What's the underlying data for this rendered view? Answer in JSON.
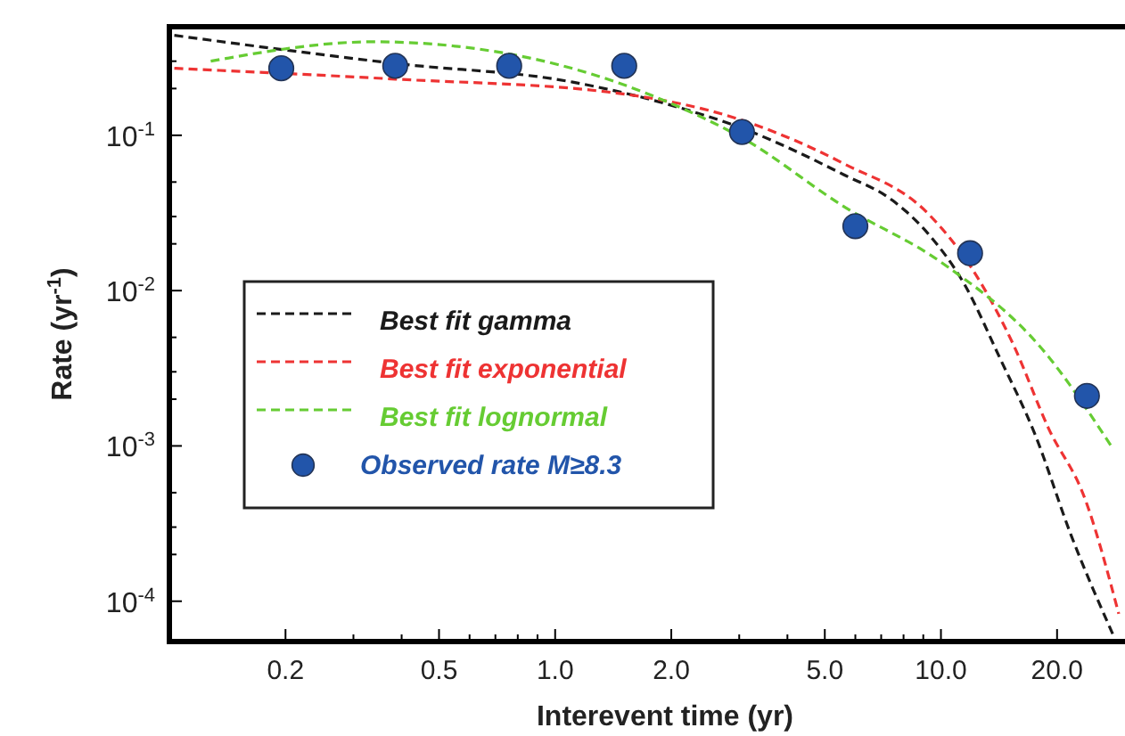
{
  "chart_data": {
    "type": "line",
    "xlabel": "Interevent time (yr)",
    "ylabel": "Rate (yr$^{-1}$)",
    "log": "xy",
    "grid": false,
    "legend": "left",
    "line_style": "dashed",
    "xlim": [
      0.1,
      30
    ],
    "ylim": [
      5.5e-05,
      0.5
    ],
    "xticks": [
      {
        "value": 0.2,
        "label": "0.2"
      },
      {
        "value": 0.3,
        "label": null
      },
      {
        "value": 0.4,
        "label": null
      },
      {
        "value": 0.5,
        "label": "0.5"
      },
      {
        "value": 0.6,
        "label": null
      },
      {
        "value": 0.7,
        "label": null
      },
      {
        "value": 0.8,
        "label": null
      },
      {
        "value": 0.9,
        "label": null
      },
      {
        "value": 1,
        "label": "1.0"
      },
      {
        "value": 2,
        "label": "2.0"
      },
      {
        "value": 3,
        "label": null
      },
      {
        "value": 4,
        "label": null
      },
      {
        "value": 5,
        "label": "5.0"
      },
      {
        "value": 6,
        "label": null
      },
      {
        "value": 7,
        "label": null
      },
      {
        "value": 8,
        "label": null
      },
      {
        "value": 9,
        "label": null
      },
      {
        "value": 10,
        "label": "10.0"
      },
      {
        "value": 20,
        "label": "20.0"
      }
    ],
    "yticks": [
      {
        "value": 0.0001,
        "label": "10$^{-4}$"
      },
      {
        "value": 0.0002,
        "label": null
      },
      {
        "value": 0.0003,
        "label": null
      },
      {
        "value": 0.0005,
        "label": null
      },
      {
        "value": 0.001,
        "label": "10$^{-3}$"
      },
      {
        "value": 0.002,
        "label": null
      },
      {
        "value": 0.003,
        "label": null
      },
      {
        "value": 0.005,
        "label": null
      },
      {
        "value": 0.01,
        "label": "10$^{-2}$"
      },
      {
        "value": 0.02,
        "label": null
      },
      {
        "value": 0.03,
        "label": null
      },
      {
        "value": 0.05,
        "label": null
      },
      {
        "value": 0.1,
        "label": "10$^{-1}$"
      },
      {
        "value": 0.2,
        "label": null
      },
      {
        "value": 0.3,
        "label": null
      }
    ],
    "series": [
      {
        "name": "Best fit gamma",
        "color": "#1a1a1a",
        "x": [
          0.103,
          0.385,
          1.11,
          1.93,
          3.08,
          5.58,
          7.5,
          9.3,
          11.5,
          14.2,
          17.5,
          21.7,
          28
        ],
        "values": [
          0.44,
          0.29,
          0.22,
          0.16,
          0.11,
          0.056,
          0.038,
          0.023,
          0.011,
          0.0037,
          0.0012,
          0.00027,
          6e-05
        ]
      },
      {
        "name": "Best fit exponential",
        "color": "#ee3333",
        "x": [
          0.103,
          0.385,
          1.37,
          3.08,
          5.58,
          9.3,
          12,
          15.4,
          19,
          23.6,
          28.9
        ],
        "values": [
          0.27,
          0.23,
          0.19,
          0.124,
          0.066,
          0.031,
          0.014,
          0.0045,
          0.0013,
          0.00046,
          8.3e-05
        ]
      },
      {
        "name": "Best fit lognormal",
        "color": "#66cc33",
        "x": [
          0.128,
          0.34,
          0.73,
          1.44,
          2.0,
          3.08,
          5.58,
          10.1,
          18.3,
          28
        ],
        "values": [
          0.3,
          0.4,
          0.34,
          0.22,
          0.16,
          0.095,
          0.035,
          0.015,
          0.0042,
          0.00095
        ]
      },
      {
        "name": "Observed rate M≥8.3",
        "type": "scatter",
        "marker": "circle",
        "color": "#2255aa",
        "x": [
          0.195,
          0.385,
          0.76,
          1.51,
          3.05,
          6.0,
          11.9,
          23.9
        ],
        "values": [
          0.27,
          0.28,
          0.28,
          0.28,
          0.105,
          0.026,
          0.0174,
          0.0021
        ]
      }
    ]
  }
}
